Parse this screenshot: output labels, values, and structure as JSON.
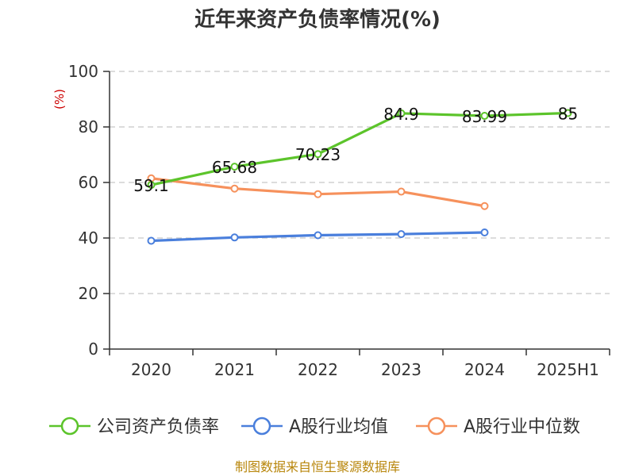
{
  "chart_data": {
    "type": "line",
    "title": "近年来资产负债率情况(%)",
    "ylabel": "(%)",
    "xlabel": "",
    "ylim": [
      0,
      100
    ],
    "yticks": [
      0,
      20,
      40,
      60,
      80,
      100
    ],
    "categories": [
      "2020",
      "2021",
      "2022",
      "2023",
      "2024",
      "2025H1"
    ],
    "grid": true,
    "legend_position": "bottom",
    "series": [
      {
        "name": "公司资产负债率",
        "color": "#5cc42b",
        "values": [
          59.1,
          65.68,
          70.23,
          84.9,
          83.99,
          85
        ],
        "labels": [
          "59.1",
          "65.68",
          "70.23",
          "84.9",
          "83.99",
          "85"
        ]
      },
      {
        "name": "A股行业均值",
        "color": "#4a7fdc",
        "values": [
          39.0,
          40.2,
          41.0,
          41.4,
          42.0,
          null
        ]
      },
      {
        "name": "A股行业中位数",
        "color": "#f6915c",
        "values": [
          61.5,
          57.8,
          55.8,
          56.7,
          51.5,
          null
        ]
      }
    ]
  },
  "source": "制图数据来自恒生聚源数据库"
}
